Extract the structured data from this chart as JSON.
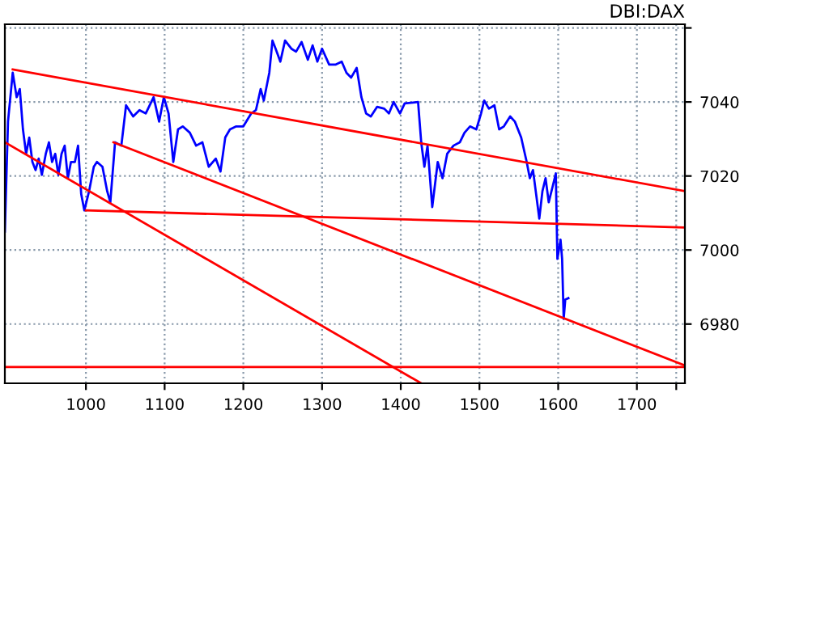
{
  "chart_data": {
    "type": "line",
    "title": "DBI:DAX",
    "xlim": [
      897,
      1761
    ],
    "ylim": [
      6964,
      7061
    ],
    "xticks": [
      1000,
      1100,
      1200,
      1300,
      1400,
      1500,
      1600,
      1700,
      {
        "value": 1750,
        "label": null
      }
    ],
    "yticks": [
      6980,
      7000,
      7020,
      7040,
      {
        "value": 7060,
        "label": null
      }
    ],
    "grid": true,
    "legend": false,
    "marker": "none",
    "line_style": "solid",
    "ref_lines": [
      {
        "axis": "y",
        "value": 6968.4,
        "label": null,
        "color": "#ff0000"
      }
    ],
    "series": [
      {
        "color": "#0000ff",
        "x": [
          897,
          901,
          907,
          912,
          916,
          920,
          924,
          928,
          932,
          936,
          940,
          944,
          949,
          953,
          957,
          961,
          965,
          969,
          973,
          977,
          981,
          986,
          990,
          994,
          998,
          1004,
          1010,
          1014,
          1021,
          1027,
          1031,
          1037,
          1045,
          1051,
          1060,
          1068,
          1076,
          1086,
          1093,
          1099,
          1105,
          1111,
          1117,
          1123,
          1132,
          1140,
          1148,
          1156,
          1165,
          1171,
          1177,
          1183,
          1191,
          1200,
          1210,
          1216,
          1222,
          1226,
          1233,
          1237,
          1241,
          1247,
          1253,
          1261,
          1267,
          1274,
          1282,
          1288,
          1294,
          1300,
          1309,
          1317,
          1325,
          1331,
          1337,
          1344,
          1350,
          1356,
          1362,
          1370,
          1379,
          1385,
          1391,
          1399,
          1405,
          1422,
          1426,
          1430,
          1434,
          1440,
          1447,
          1453,
          1459,
          1467,
          1475,
          1481,
          1488,
          1496,
          1502,
          1506,
          1512,
          1519,
          1525,
          1531,
          1539,
          1545,
          1553,
          1560,
          1564,
          1568,
          1572,
          1576,
          1580,
          1584,
          1588,
          1593,
          1597,
          1599,
          1603,
          1605,
          1607,
          1609,
          1613
        ],
        "values": [
          7005.0,
          7034.7,
          7047.9,
          7041.3,
          7043.5,
          7032.6,
          7026.0,
          7030.4,
          7023.8,
          7021.6,
          7024.7,
          7020.3,
          7026.0,
          7029.1,
          7023.8,
          7026.0,
          7020.3,
          7026.0,
          7028.2,
          7019.4,
          7023.8,
          7023.8,
          7028.2,
          7015.1,
          7010.7,
          7015.9,
          7022.5,
          7023.8,
          7022.5,
          7015.9,
          7012.9,
          7029.1,
          7028.2,
          7039.1,
          7036.1,
          7037.8,
          7036.9,
          7041.3,
          7034.7,
          7041.3,
          7036.9,
          7023.8,
          7032.6,
          7033.4,
          7031.7,
          7028.2,
          7029.1,
          7022.5,
          7024.7,
          7021.2,
          7030.4,
          7032.6,
          7033.4,
          7033.4,
          7036.9,
          7037.8,
          7043.5,
          7040.4,
          7047.9,
          7056.6,
          7054.4,
          7050.9,
          7056.6,
          7054.4,
          7053.6,
          7056.2,
          7051.4,
          7055.3,
          7050.9,
          7054.4,
          7050.1,
          7050.1,
          7050.9,
          7047.9,
          7046.6,
          7049.2,
          7041.3,
          7036.9,
          7036.1,
          7038.7,
          7038.2,
          7036.9,
          7040.0,
          7036.9,
          7039.6,
          7040.0,
          7029.1,
          7022.5,
          7028.2,
          7011.6,
          7023.8,
          7019.4,
          7026.0,
          7028.2,
          7029.1,
          7031.7,
          7033.4,
          7032.6,
          7036.9,
          7040.4,
          7038.2,
          7039.1,
          7032.6,
          7033.4,
          7036.1,
          7034.7,
          7030.4,
          7023.8,
          7019.4,
          7021.6,
          7015.1,
          7008.5,
          7015.9,
          7019.4,
          7012.9,
          7017.2,
          7020.7,
          6997.6,
          7002.8,
          6997.6,
          6981.4,
          6986.6,
          6987.0
        ]
      },
      {
        "color": "#ff0000",
        "x": [
          907,
          1761
        ],
        "values": [
          7048.8,
          7015.9
        ]
      },
      {
        "color": "#ff0000",
        "x": [
          1000,
          1761
        ],
        "values": [
          7010.7,
          7006.1
        ]
      },
      {
        "color": "#ff0000",
        "x": [
          1035,
          1761
        ],
        "values": [
          7029.1,
          6968.8
        ]
      },
      {
        "color": "#ff0000",
        "x": [
          897,
          1426
        ],
        "values": [
          7029.1,
          6964.0
        ]
      }
    ]
  }
}
